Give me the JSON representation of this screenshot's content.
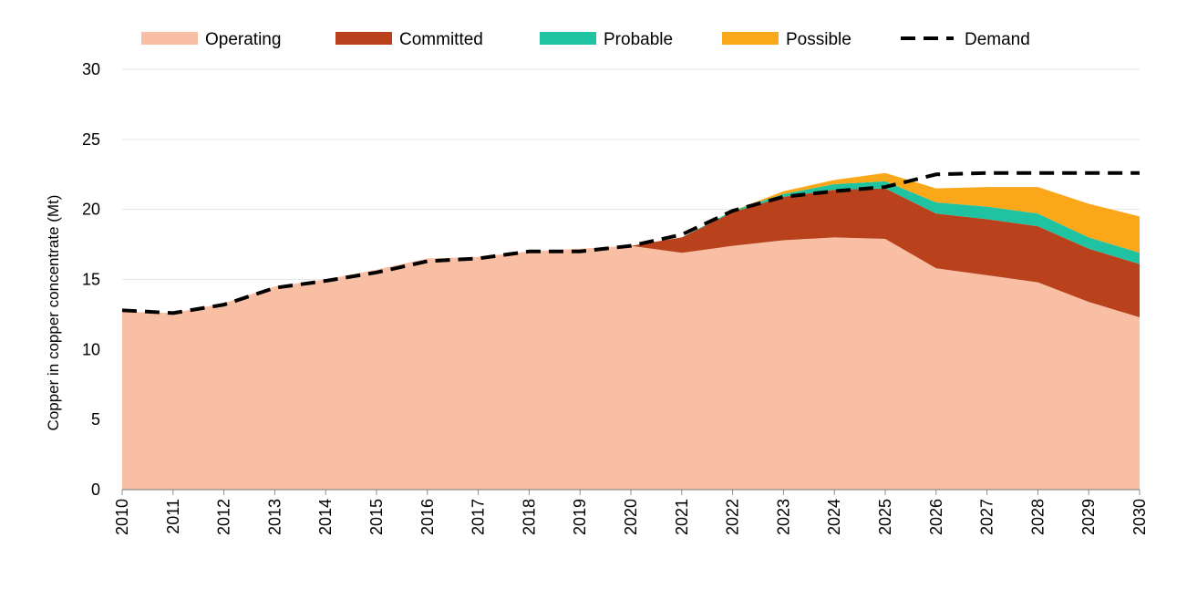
{
  "chart_data": {
    "type": "area",
    "title": "",
    "xlabel": "",
    "ylabel": "Copper in copper concentrate (Mt)",
    "ylim": [
      0,
      30
    ],
    "yticks": [
      0,
      5,
      10,
      15,
      20,
      25,
      30
    ],
    "grid": true,
    "stacked": true,
    "legend_position": "top",
    "x": [
      "2010",
      "2011",
      "2012",
      "2013",
      "2014",
      "2015",
      "2016",
      "2017",
      "2018",
      "2019",
      "2020",
      "2021",
      "2022",
      "2023",
      "2024",
      "2025",
      "2026",
      "2027",
      "2028",
      "2029",
      "2030"
    ],
    "series": [
      {
        "name": "Operating",
        "color": "#F8BFA4",
        "values": [
          12.7,
          12.6,
          13.3,
          14.5,
          15.0,
          15.7,
          16.5,
          16.6,
          17.0,
          17.2,
          17.4,
          16.9,
          17.4,
          17.8,
          18.0,
          17.9,
          15.8,
          15.3,
          14.8,
          13.4,
          12.3
        ]
      },
      {
        "name": "Committed",
        "color": "#B9411B",
        "values": [
          0,
          0,
          0,
          0,
          0,
          0,
          0,
          0,
          0,
          0,
          0,
          1.1,
          2.4,
          3.1,
          3.4,
          3.6,
          3.9,
          4.0,
          4.0,
          3.8,
          3.8
        ]
      },
      {
        "name": "Probable",
        "color": "#1FC3A2",
        "values": [
          0,
          0,
          0,
          0,
          0,
          0,
          0,
          0,
          0,
          0,
          0,
          0,
          0.1,
          0.2,
          0.4,
          0.5,
          0.8,
          0.9,
          0.9,
          0.8,
          0.8
        ]
      },
      {
        "name": "Possible",
        "color": "#FBA71A",
        "values": [
          0,
          0,
          0,
          0,
          0,
          0,
          0,
          0,
          0,
          0,
          0,
          0,
          0,
          0.2,
          0.3,
          0.6,
          1.0,
          1.4,
          1.9,
          2.4,
          2.6
        ]
      }
    ],
    "demand": {
      "name": "Demand",
      "color": "#000000",
      "values": [
        12.8,
        12.6,
        13.2,
        14.4,
        14.9,
        15.5,
        16.3,
        16.5,
        17.0,
        17.0,
        17.4,
        18.2,
        19.9,
        20.9,
        21.3,
        21.6,
        22.5,
        22.6,
        22.6,
        22.6,
        22.6
      ]
    }
  }
}
